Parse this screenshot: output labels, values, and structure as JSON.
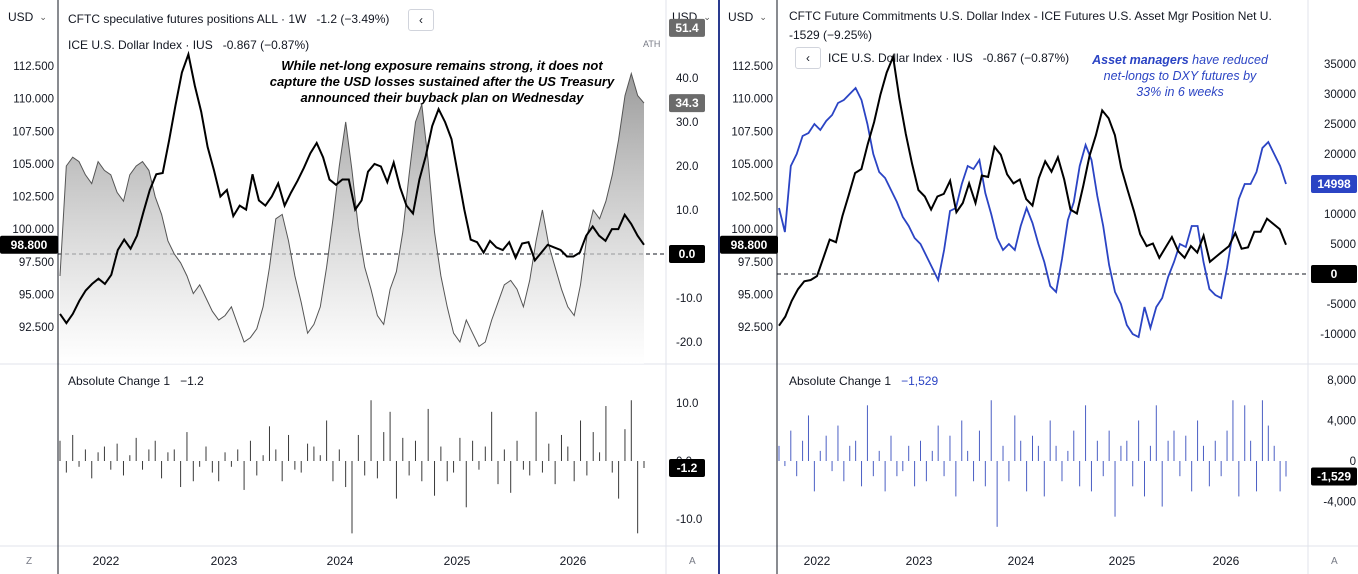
{
  "left_pane": {
    "currency_left": "USD",
    "currency_right": "USD",
    "legend_main": "CFTC speculative futures positions ALL · 1W",
    "legend_main_change": "-1.2 (−3.49%)",
    "legend_index": "ICE U.S. Dollar Index · IUS",
    "legend_index_change": "-0.867 (−0.87%)",
    "ath_label": "ATH",
    "annotation": "While net-long exposure remains strong, it does not capture the USD losses sustained after the US Treasury announced their buyback plan on Wednesday",
    "sub_legend": "Absolute Change 1",
    "sub_legend_value": "−1.2",
    "corner_left": "Z",
    "corner_right": "A"
  },
  "right_pane": {
    "currency_left": "USD",
    "legend_main": "CFTC Future Commitments U.S. Dollar Index - ICE Futures U.S. Asset Mgr Position Net U.",
    "legend_main_change": "-1529 (−9.25%)",
    "legend_index": "ICE U.S. Dollar Index · IUS",
    "legend_index_change": "-0.867 (−0.87%)",
    "annotation_bold": "Asset managers",
    "annotation_rest": " have reduced net-longs to DXY futures by 33% in 6 weeks",
    "sub_legend": "Absolute Change 1",
    "sub_legend_value": "−1,529",
    "corner_right": "A"
  },
  "colors": {
    "price_line": "#000000",
    "spec_area": "#9e9e9e",
    "asset_mgr_line": "#2b44c4",
    "divider": "#2a3b8f"
  },
  "chart_data": [
    {
      "type": "area",
      "title": "CFTC speculative futures positions ALL",
      "x_labels": [
        "2022",
        "2023",
        "2024",
        "2025",
        "2026"
      ],
      "y_left_ticks": [
        "112.500",
        "110.000",
        "107.500",
        "105.000",
        "102.500",
        "100.000",
        "97.500",
        "95.000",
        "92.500"
      ],
      "y_right_ticks": [
        "40.0",
        "30.0",
        "20.0",
        "10.0",
        "0.0",
        "-10.0",
        "-20.0"
      ],
      "y_right_range": [
        -25,
        50
      ],
      "price_last_label": "98.800",
      "markers": [
        {
          "label": "51.4",
          "value": 51.4,
          "style": "gray"
        },
        {
          "label": "34.3",
          "value": 34.3,
          "style": "gray"
        },
        {
          "label": "0.0",
          "value": 0.0,
          "style": "black"
        }
      ],
      "series": [
        {
          "name": "CFTC speculative futures positions ALL",
          "axis": "right",
          "values": [
            -5,
            20,
            22,
            21,
            18,
            16,
            21,
            19,
            18,
            14,
            12,
            18,
            20,
            21,
            19,
            13,
            9,
            3,
            0,
            -2,
            -5,
            -9,
            -7,
            -10,
            -13,
            -15,
            -14,
            -12,
            -16,
            -20,
            -19,
            -17,
            -12,
            -3,
            8,
            9,
            3,
            -5,
            -11,
            -18,
            -16,
            -12,
            -3,
            8,
            20,
            30,
            19,
            6,
            -3,
            -8,
            -14,
            -16,
            -8,
            -4,
            5,
            18,
            30,
            34,
            21,
            5,
            -5,
            -12,
            -18,
            -20,
            -15,
            -18,
            -21,
            -20,
            -15,
            -11,
            -7,
            -6,
            -8,
            -12,
            -6,
            3,
            10,
            2,
            -3,
            -8,
            -12,
            -14,
            -7,
            4,
            10,
            8,
            12,
            18,
            26,
            36,
            41,
            36,
            34.3
          ]
        },
        {
          "name": "ICE U.S. Dollar Index",
          "axis": "left",
          "values": [
            93.5,
            92.8,
            93.5,
            94.5,
            95.3,
            95.8,
            96.2,
            95.8,
            96.5,
            98.4,
            99.2,
            98.5,
            99.5,
            101.3,
            103.0,
            104.2,
            104.3,
            106.8,
            109.5,
            112.0,
            113.4,
            111.0,
            109.0,
            106.3,
            104.5,
            102.5,
            103.0,
            101.0,
            101.8,
            101.5,
            104.2,
            102.2,
            101.8,
            102.5,
            103.5,
            101.8,
            102.8,
            103.7,
            104.7,
            105.8,
            106.6,
            105.5,
            103.8,
            103.4,
            103.8,
            103.8,
            101.5,
            102.2,
            104.4,
            105.0,
            104.8,
            103.6,
            105.1,
            103.2,
            101.8,
            101.2,
            103.8,
            105.6,
            107.9,
            109.2,
            108.2,
            106.9,
            104.2,
            101.5,
            99.2,
            99.0,
            98.2,
            99.1,
            98.6,
            98.4,
            99.0,
            97.8,
            98.9,
            99.0,
            97.6,
            98.2,
            98.8,
            98.6,
            98.4,
            97.9,
            97.9,
            98.2,
            99.5,
            100.2,
            99.5,
            99.1,
            100.0,
            100.0,
            101.1,
            100.4,
            99.5,
            98.8
          ]
        }
      ]
    },
    {
      "type": "bar",
      "title": "Absolute Change 1",
      "y_ticks": [
        "10.0",
        "0.0",
        "-10.0"
      ],
      "y_range": [
        -14,
        14
      ],
      "last_label": "-1.2",
      "values": [
        3.5,
        -2.0,
        4.5,
        -1.0,
        2.0,
        -3.0,
        1.5,
        2.5,
        -1.5,
        3.0,
        -2.5,
        1.0,
        4.0,
        -1.5,
        2.0,
        3.5,
        -3.0,
        1.5,
        2.0,
        -4.5,
        5.0,
        -3.5,
        -1.0,
        2.5,
        -2.0,
        -3.5,
        1.5,
        -1.0,
        2.0,
        -5.0,
        3.5,
        -2.5,
        1.0,
        6.0,
        2.0,
        -3.5,
        4.5,
        -1.5,
        -2.0,
        3.0,
        2.5,
        1.0,
        7.0,
        -3.5,
        2.0,
        -4.5,
        -12.5,
        4.5,
        -2.5,
        10.5,
        -3.0,
        5.0,
        8.5,
        -6.5,
        4.0,
        -2.5,
        3.5,
        -3.5,
        9.0,
        -6.0,
        2.5,
        -3.5,
        -2.0,
        4.0,
        -8.0,
        3.5,
        -1.5,
        2.5,
        8.5,
        -4.0,
        2.0,
        -5.5,
        3.5,
        -1.5,
        -2.5,
        8.5,
        -2.0,
        3.0,
        -4.0,
        4.5,
        2.5,
        -3.5,
        7.0,
        -2.5,
        5.0,
        1.5,
        9.5,
        -2.0,
        -6.5,
        5.5,
        10.5,
        -12.5,
        -1.2
      ]
    },
    {
      "type": "line",
      "title": "CFTC Future Commitments U.S. Dollar Index - ICE Futures U.S. Asset Mgr Position Net U.",
      "x_labels": [
        "2022",
        "2023",
        "2024",
        "2025",
        "2026"
      ],
      "y_left_ticks": [
        "112.500",
        "110.000",
        "107.500",
        "105.000",
        "102.500",
        "100.000",
        "97.500",
        "95.000",
        "92.500"
      ],
      "y_right_ticks": [
        "35000",
        "30000",
        "25000",
        "20000",
        "15000",
        "10000",
        "5000",
        "0",
        "-5000",
        "-10000"
      ],
      "y_right_range": [
        -15000,
        40000
      ],
      "price_last_label": "98.800",
      "markers": [
        {
          "label": "14998",
          "value": 14998,
          "style": "blue"
        },
        {
          "label": "0",
          "value": 0,
          "style": "black"
        }
      ],
      "series": [
        {
          "name": "CFTC Future Commitments U.S. Dollar Index - ICE Futures U.S. Asset Mgr Position Net U.",
          "axis": "right",
          "values": [
            11000,
            7000,
            18000,
            20000,
            23000,
            23500,
            25000,
            24000,
            25500,
            26500,
            28500,
            29000,
            30000,
            31000,
            29000,
            25000,
            20000,
            17000,
            16000,
            14000,
            12000,
            9500,
            8000,
            6000,
            5000,
            3000,
            1000,
            -1000,
            4000,
            10500,
            11000,
            15000,
            18000,
            17500,
            19000,
            13500,
            10000,
            6000,
            4000,
            5000,
            4000,
            8000,
            11000,
            8500,
            5000,
            2000,
            -2000,
            -3000,
            2500,
            9000,
            12000,
            18000,
            21500,
            19000,
            13000,
            8000,
            1500,
            -3000,
            -5000,
            -8500,
            -10000,
            -10500,
            -5500,
            -9000,
            -5500,
            -4000,
            -500,
            2000,
            5000,
            4500,
            8000,
            8000,
            2000,
            -2500,
            -3500,
            -4000,
            1000,
            7000,
            12500,
            15000,
            15000,
            17000,
            21000,
            22000,
            20000,
            18000,
            14998
          ]
        },
        {
          "name": "ICE U.S. Dollar Index",
          "axis": "left",
          "values": [
            92.6,
            93.3,
            94.5,
            95.4,
            96.0,
            96.1,
            96.4,
            97.8,
            99.2,
            99.0,
            101.0,
            102.6,
            104.3,
            104.6,
            106.5,
            108.2,
            110.3,
            112.0,
            113.2,
            110.0,
            107.3,
            105.0,
            103.0,
            102.5,
            101.5,
            102.5,
            102.7,
            103.7,
            101.3,
            102.0,
            103.5,
            102.0,
            104.1,
            104.0,
            106.3,
            105.7,
            104.2,
            103.5,
            103.8,
            102.3,
            101.8,
            103.9,
            105.2,
            104.4,
            105.5,
            103.8,
            101.5,
            101.2,
            103.3,
            105.6,
            107.2,
            109.1,
            108.5,
            107.2,
            104.7,
            103.0,
            101.4,
            99.6,
            98.7,
            98.9,
            97.8,
            98.6,
            99.4,
            98.3,
            97.8,
            98.7,
            98.2,
            99.5,
            97.5,
            97.9,
            98.3,
            98.7,
            99.7,
            98.5,
            98.6,
            99.8,
            99.8,
            100.8,
            100.4,
            100.0,
            98.8
          ]
        }
      ]
    },
    {
      "type": "bar",
      "title": "Absolute Change 1",
      "y_ticks": [
        "8,000",
        "4,000",
        "0",
        "-4,000"
      ],
      "y_range": [
        -8000,
        8000
      ],
      "last_label": "-1,529",
      "values": [
        1500,
        -500,
        3000,
        -1500,
        2000,
        4500,
        -3000,
        1000,
        2500,
        -1000,
        3500,
        -2000,
        1500,
        2000,
        -2500,
        5500,
        -1500,
        1000,
        -3000,
        2500,
        -1500,
        -1000,
        1500,
        -2500,
        2000,
        -2000,
        1000,
        3500,
        -1500,
        2500,
        -3500,
        4000,
        1000,
        -2000,
        3000,
        -2500,
        6000,
        -6500,
        1500,
        -2000,
        4500,
        2000,
        -3000,
        2500,
        1500,
        -3500,
        4000,
        1500,
        -2000,
        1000,
        3000,
        -2500,
        5500,
        -3000,
        2000,
        -1500,
        3000,
        -5500,
        1500,
        2000,
        -2500,
        4000,
        -3500,
        1500,
        5500,
        -4500,
        2000,
        3000,
        -1500,
        2500,
        -3000,
        4000,
        1500,
        -2500,
        2000,
        -1500,
        3000,
        6000,
        -3500,
        5500,
        2000,
        -3000,
        6000,
        3500,
        1500,
        -3000,
        -1529
      ]
    }
  ]
}
